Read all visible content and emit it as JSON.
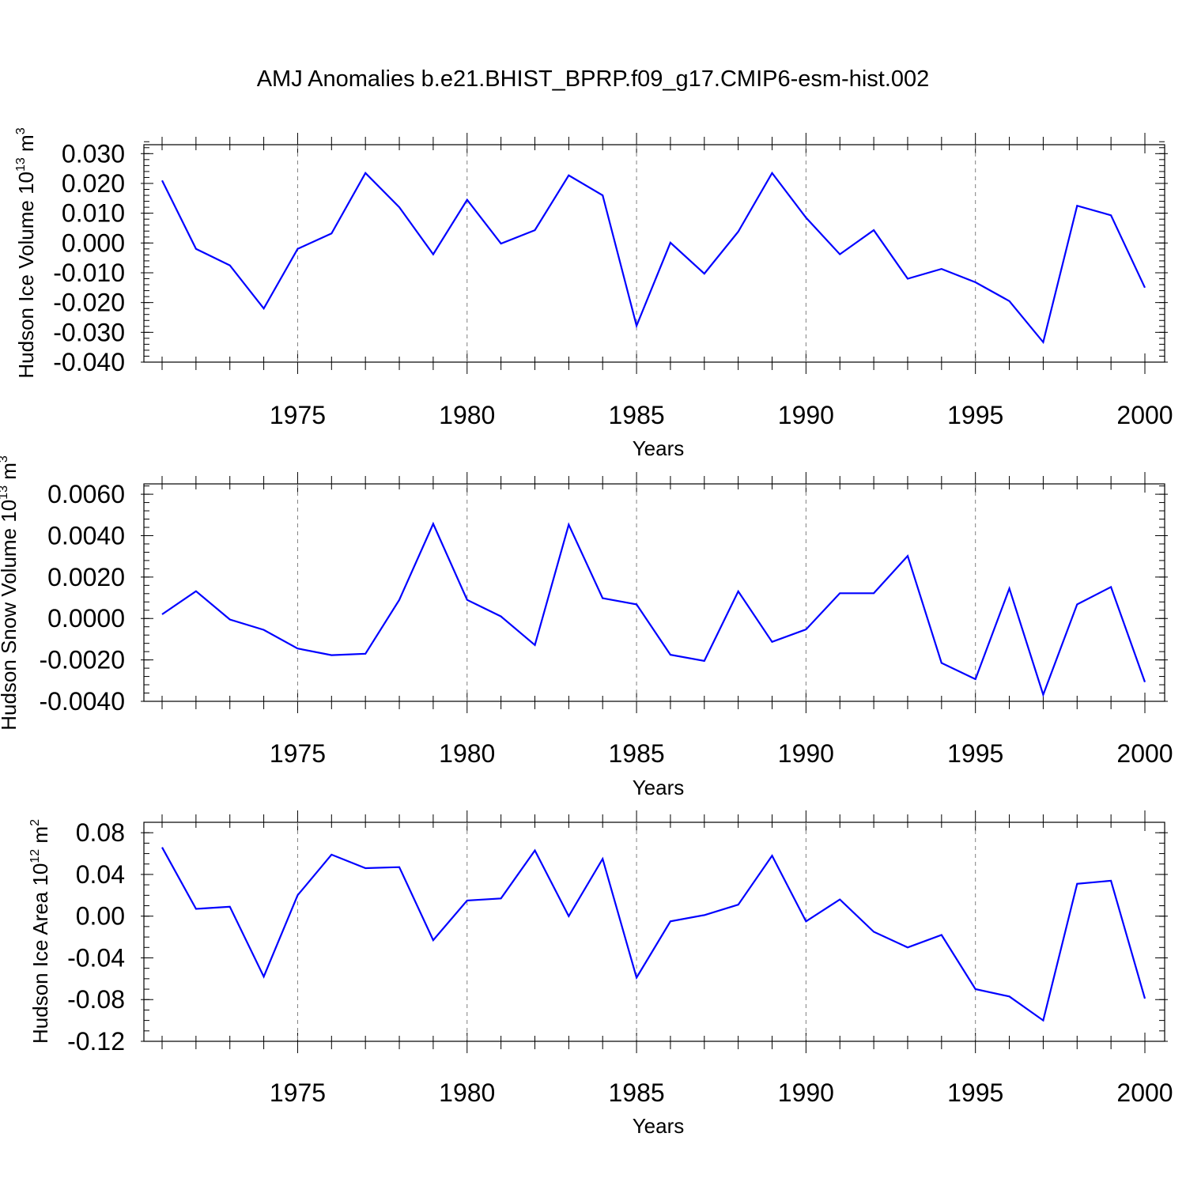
{
  "chart_data": {
    "title": "AMJ Anomalies b.e21.BHIST_BPRP.f09_g17.CMIP6-esm-hist.002",
    "line_color": "#0000ff",
    "x_tick_labels": [
      "1975",
      "1980",
      "1985",
      "1990",
      "1995",
      "2000"
    ],
    "panels": [
      {
        "type": "line",
        "xlabel": "Years",
        "ylabel": "Hudson Ice Volume",
        "ylabel_unit_base": "10",
        "ylabel_unit_exp": "13",
        "ylabel_unit_symbol": "m",
        "ylabel_unit_symbol_exp": "3",
        "xlim": [
          1971,
          2000
        ],
        "ylim": [
          -0.04,
          0.033
        ],
        "yticks": [
          -0.04,
          -0.03,
          -0.02,
          -0.01,
          0.0,
          0.01,
          0.02,
          0.03
        ],
        "ytick_labels": [
          "-0.040",
          "-0.030",
          "-0.020",
          "-0.010",
          "0.000",
          "0.010",
          "0.020",
          "0.030"
        ],
        "yminor": 0.002,
        "x": [
          1971,
          1972,
          1973,
          1974,
          1975,
          1976,
          1977,
          1978,
          1979,
          1980,
          1981,
          1982,
          1983,
          1984,
          1985,
          1986,
          1987,
          1988,
          1989,
          1990,
          1991,
          1992,
          1993,
          1994,
          1995,
          1996,
          1997,
          1998,
          1999,
          2000
        ],
        "y": [
          0.021,
          -0.002,
          -0.0075,
          -0.022,
          -0.002,
          0.0032,
          0.0235,
          0.012,
          -0.0038,
          0.0145,
          -0.0002,
          0.0043,
          0.0227,
          0.016,
          -0.0278,
          0.0001,
          -0.0103,
          0.0038,
          0.0235,
          0.0085,
          -0.0038,
          0.0043,
          -0.012,
          -0.0087,
          -0.0132,
          -0.0195,
          -0.0333,
          0.0125,
          0.0093,
          -0.015
        ]
      },
      {
        "type": "line",
        "xlabel": "Years",
        "ylabel": "Hudson Snow Volume",
        "ylabel_unit_base": "10",
        "ylabel_unit_exp": "13",
        "ylabel_unit_symbol": "m",
        "ylabel_unit_symbol_exp": "3",
        "xlim": [
          1971,
          2000
        ],
        "ylim": [
          -0.004,
          0.0065
        ],
        "yticks": [
          -0.004,
          -0.002,
          0.0,
          0.002,
          0.004,
          0.006
        ],
        "ytick_labels": [
          "-0.0040",
          "-0.0020",
          "0.0000",
          "0.0020",
          "0.0040",
          "0.0060"
        ],
        "yminor": 0.0004,
        "x": [
          1971,
          1972,
          1973,
          1974,
          1975,
          1976,
          1977,
          1978,
          1979,
          1980,
          1981,
          1982,
          1983,
          1984,
          1985,
          1986,
          1987,
          1988,
          1989,
          1990,
          1991,
          1992,
          1993,
          1994,
          1995,
          1996,
          1997,
          1998,
          1999,
          2000
        ],
        "y": [
          0.0002,
          0.00132,
          -5e-05,
          -0.00055,
          -0.00145,
          -0.00177,
          -0.0017,
          0.0009,
          0.00457,
          0.0009,
          0.0001,
          -0.00128,
          0.00453,
          0.00098,
          0.00068,
          -0.00175,
          -0.00205,
          0.00131,
          -0.00113,
          -0.00053,
          0.00122,
          0.00122,
          0.00302,
          -0.00215,
          -0.00293,
          0.00145,
          -0.00368,
          0.00068,
          0.00152,
          -0.00307
        ]
      },
      {
        "type": "line",
        "xlabel": "Years",
        "ylabel": "Hudson Ice Area",
        "ylabel_unit_base": "10",
        "ylabel_unit_exp": "12",
        "ylabel_unit_symbol": "m",
        "ylabel_unit_symbol_exp": "2",
        "xlim": [
          1971,
          2000
        ],
        "ylim": [
          -0.12,
          0.09
        ],
        "yticks": [
          -0.12,
          -0.08,
          -0.04,
          0.0,
          0.04,
          0.08
        ],
        "ytick_labels": [
          "-0.12",
          "-0.08",
          "-0.04",
          "0.00",
          "0.04",
          "0.08"
        ],
        "yminor": 0.01,
        "x": [
          1971,
          1972,
          1973,
          1974,
          1975,
          1976,
          1977,
          1978,
          1979,
          1980,
          1981,
          1982,
          1983,
          1984,
          1985,
          1986,
          1987,
          1988,
          1989,
          1990,
          1991,
          1992,
          1993,
          1994,
          1995,
          1996,
          1997,
          1998,
          1999,
          2000
        ],
        "y": [
          0.066,
          0.007,
          0.009,
          -0.058,
          0.02,
          0.059,
          0.046,
          0.047,
          -0.023,
          0.015,
          0.017,
          0.063,
          0.0,
          0.055,
          -0.059,
          -0.005,
          0.001,
          0.011,
          0.058,
          -0.005,
          0.016,
          -0.015,
          -0.03,
          -0.018,
          -0.07,
          -0.077,
          -0.1,
          0.031,
          0.034,
          -0.079
        ]
      }
    ]
  }
}
